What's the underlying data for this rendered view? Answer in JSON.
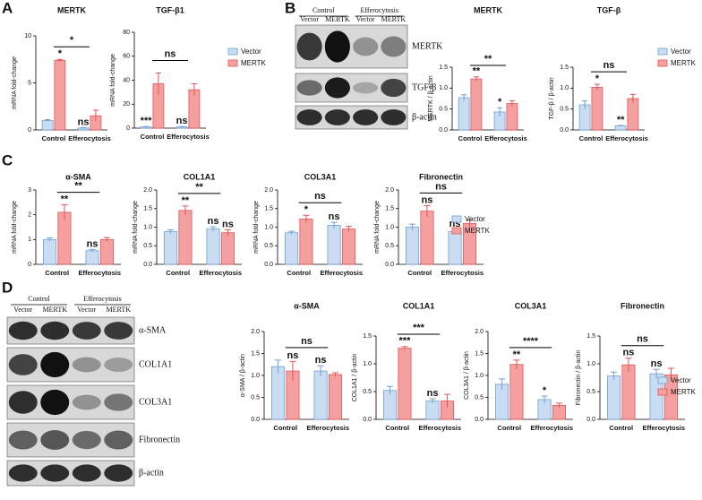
{
  "panels": [
    "A",
    "B",
    "C",
    "D"
  ],
  "blots": [
    {
      "groups": [
        "Control",
        "Efferocytosis"
      ],
      "lanes": [
        "Vector",
        "MERTK",
        "Vector",
        "MERTK"
      ],
      "rows": [
        "MERTK",
        "TGF-β",
        "β-actin"
      ]
    },
    {
      "groups": [
        "Control",
        "Efferocytosis"
      ],
      "lanes": [
        "Vector",
        "MERTK",
        "Vector",
        "MERTK"
      ],
      "rows": [
        "α-SMA",
        "COL1A1",
        "COL3A1",
        "Fibronectin",
        "β-actin"
      ]
    }
  ],
  "chart_data": [
    {
      "type": "bar",
      "title": "MERTK",
      "ylabel": "mRNA fold-change",
      "categories": [
        "Control",
        "Efferocytosis"
      ],
      "ylim": [
        0,
        10
      ],
      "yticks": [
        0,
        5,
        10
      ],
      "bracket": "*",
      "series": [
        {
          "name": "Vector",
          "color": "#c9dcf2",
          "edge_color": "#6fa0d8",
          "values": [
            1,
            0.2
          ],
          "errors": [
            0.1,
            0.05
          ],
          "annotations": [
            null,
            "ns"
          ]
        },
        {
          "name": "MERTK",
          "color": "#f4a0a0",
          "edge_color": "#e25555",
          "values": [
            7.4,
            1.5
          ],
          "errors": [
            0.1,
            0.6
          ],
          "annotations": [
            "*",
            null
          ]
        }
      ]
    },
    {
      "type": "bar",
      "title": "TGF-β1",
      "ylabel": "mRNA fold-change",
      "categories": [
        "Control",
        "Efferocytosis"
      ],
      "ylim": [
        0,
        80
      ],
      "yticks": [
        0,
        20,
        40,
        60,
        80
      ],
      "bracket": "ns",
      "legend": "right",
      "series": [
        {
          "name": "Vector",
          "color": "#c9dcf2",
          "edge_color": "#6fa0d8",
          "values": [
            1,
            1
          ],
          "errors": [
            0.3,
            0.3
          ],
          "annotations": [
            "***",
            "ns"
          ]
        },
        {
          "name": "MERTK",
          "color": "#f4a0a0",
          "edge_color": "#e25555",
          "values": [
            37,
            32
          ],
          "errors": [
            9,
            5
          ],
          "annotations": [
            null,
            null
          ]
        }
      ]
    },
    {
      "type": "bar",
      "title": "MERTK",
      "ylabel": "MERTK / β-actin",
      "categories": [
        "Control",
        "Efferocytosis"
      ],
      "ylim": [
        0,
        1.5
      ],
      "yticks": [
        {
          "value": 0,
          "label": "0.0"
        },
        0.5,
        {
          "value": 1,
          "label": "1.0"
        },
        1.5
      ],
      "bracket": "**",
      "series": [
        {
          "name": "Vector",
          "color": "#c9dcf2",
          "edge_color": "#6fa0d8",
          "values": [
            0.77,
            0.43
          ],
          "errors": [
            0.07,
            0.1
          ],
          "annotations": [
            null,
            "*"
          ]
        },
        {
          "name": "MERTK",
          "color": "#f4a0a0",
          "edge_color": "#e25555",
          "values": [
            1.22,
            0.63
          ],
          "errors": [
            0.05,
            0.07
          ],
          "annotations": [
            "**",
            null
          ]
        }
      ]
    },
    {
      "type": "bar",
      "title": "TGF-β",
      "ylabel": "TGF-β / β-actin",
      "categories": [
        "Control",
        "Efferocytosis"
      ],
      "ylim": [
        0,
        1.5
      ],
      "yticks": [
        {
          "value": 0,
          "label": "0.0"
        },
        0.5,
        {
          "value": 1,
          "label": "1.0"
        },
        1.5
      ],
      "bracket": "ns",
      "legend": "right",
      "series": [
        {
          "name": "Vector",
          "color": "#c9dcf2",
          "edge_color": "#6fa0d8",
          "values": [
            0.6,
            0.1
          ],
          "errors": [
            0.1,
            0.01
          ],
          "annotations": [
            null,
            "**"
          ]
        },
        {
          "name": "MERTK",
          "color": "#f4a0a0",
          "edge_color": "#e25555",
          "values": [
            1.02,
            0.75
          ],
          "errors": [
            0.07,
            0.1
          ],
          "annotations": [
            "*",
            null
          ]
        }
      ]
    },
    {
      "type": "bar",
      "title": "α-SMA",
      "ylabel": "mRNA fold-change",
      "categories": [
        "Control",
        "Efferocytosis"
      ],
      "ylim": [
        0,
        3
      ],
      "yticks": [
        0,
        1,
        2,
        3
      ],
      "bracket": "**",
      "series": [
        {
          "name": "Vector",
          "color": "#c9dcf2",
          "edge_color": "#6fa0d8",
          "values": [
            1.0,
            0.55
          ],
          "errors": [
            0.07,
            0.05
          ],
          "annotations": [
            null,
            "ns"
          ]
        },
        {
          "name": "MERTK",
          "color": "#f4a0a0",
          "edge_color": "#e25555",
          "values": [
            2.1,
            1.0
          ],
          "errors": [
            0.3,
            0.08
          ],
          "annotations": [
            "**",
            null
          ]
        }
      ]
    },
    {
      "type": "bar",
      "title": "COL1A1",
      "ylabel": "mRNA fold-change",
      "categories": [
        "Control",
        "Efferocytosis"
      ],
      "ylim": [
        0,
        2
      ],
      "yticks": [
        {
          "value": 0,
          "label": "0.0"
        },
        0.5,
        {
          "value": 1,
          "label": "1.0"
        },
        1.5,
        {
          "value": 2,
          "label": "2.0"
        }
      ],
      "bracket": "**",
      "series": [
        {
          "name": "Vector",
          "color": "#c9dcf2",
          "edge_color": "#6fa0d8",
          "values": [
            0.88,
            0.95
          ],
          "errors": [
            0.05,
            0.06
          ],
          "annotations": [
            null,
            "ns"
          ]
        },
        {
          "name": "MERTK",
          "color": "#f4a0a0",
          "edge_color": "#e25555",
          "values": [
            1.45,
            0.85
          ],
          "errors": [
            0.12,
            0.08
          ],
          "annotations": [
            "**",
            "ns"
          ]
        }
      ]
    },
    {
      "type": "bar",
      "title": "COL3A1",
      "ylabel": "mRNA fold-change",
      "categories": [
        "Control",
        "Efferocytosis"
      ],
      "ylim": [
        0,
        2
      ],
      "yticks": [
        {
          "value": 0,
          "label": "0.0"
        },
        0.5,
        {
          "value": 1,
          "label": "1.0"
        },
        1.5,
        {
          "value": 2,
          "label": "2.0"
        }
      ],
      "bracket": "ns",
      "series": [
        {
          "name": "Vector",
          "color": "#c9dcf2",
          "edge_color": "#6fa0d8",
          "values": [
            0.85,
            1.05
          ],
          "errors": [
            0.04,
            0.08
          ],
          "annotations": [
            null,
            "ns"
          ]
        },
        {
          "name": "MERTK",
          "color": "#f4a0a0",
          "edge_color": "#e25555",
          "values": [
            1.22,
            0.95
          ],
          "errors": [
            0.1,
            0.07
          ],
          "annotations": [
            "*",
            null
          ]
        }
      ]
    },
    {
      "type": "bar",
      "title": "Fibronectin",
      "ylabel": "mRNA fold-change",
      "categories": [
        "Control",
        "Efferocytosis"
      ],
      "ylim": [
        0,
        2
      ],
      "yticks": [
        {
          "value": 0,
          "label": "0.0"
        },
        0.5,
        {
          "value": 1,
          "label": "1.0"
        },
        1.5,
        {
          "value": 2,
          "label": "2.0"
        }
      ],
      "bracket": "ns",
      "legend": "right",
      "series": [
        {
          "name": "Vector",
          "color": "#c9dcf2",
          "edge_color": "#6fa0d8",
          "values": [
            1.0,
            0.88
          ],
          "errors": [
            0.08,
            0.06
          ],
          "annotations": [
            null,
            "ns"
          ]
        },
        {
          "name": "MERTK",
          "color": "#f4a0a0",
          "edge_color": "#e25555",
          "values": [
            1.43,
            1.1
          ],
          "errors": [
            0.15,
            0.1
          ],
          "annotations": [
            "ns",
            null
          ]
        }
      ]
    },
    {
      "type": "bar",
      "title": "α-SMA",
      "ylabel": "α-SMA / β-actin",
      "categories": [
        "Control",
        "Efferocytosis"
      ],
      "ylim": [
        0,
        2
      ],
      "yticks": [
        {
          "value": 0,
          "label": "0.0"
        },
        0.5,
        {
          "value": 1,
          "label": "1.0"
        },
        1.5,
        {
          "value": 2,
          "label": "2.0"
        }
      ],
      "bracket": "ns",
      "series": [
        {
          "name": "Vector",
          "color": "#c9dcf2",
          "edge_color": "#6fa0d8",
          "values": [
            1.2,
            1.1
          ],
          "errors": [
            0.15,
            0.12
          ],
          "annotations": [
            null,
            "ns"
          ]
        },
        {
          "name": "MERTK",
          "color": "#f4a0a0",
          "edge_color": "#e25555",
          "values": [
            1.1,
            1.02
          ],
          "errors": [
            0.22,
            0.04
          ],
          "annotations": [
            "ns",
            null
          ]
        }
      ]
    },
    {
      "type": "bar",
      "title": "COL1A1",
      "ylabel": "COL1A1 / β-actin",
      "categories": [
        "Control",
        "Efferocytosis"
      ],
      "ylim": [
        0,
        1.5
      ],
      "yticks": [
        {
          "value": 0,
          "label": "0.0"
        },
        0.5,
        {
          "value": 1,
          "label": "1.0"
        },
        1.5
      ],
      "bracket": "***",
      "series": [
        {
          "name": "Vector",
          "color": "#c9dcf2",
          "edge_color": "#6fa0d8",
          "values": [
            0.52,
            0.33
          ],
          "errors": [
            0.07,
            0.04
          ],
          "annotations": [
            null,
            "ns"
          ]
        },
        {
          "name": "MERTK",
          "color": "#f4a0a0",
          "edge_color": "#e25555",
          "values": [
            1.28,
            0.33
          ],
          "errors": [
            0.03,
            0.12
          ],
          "annotations": [
            "***",
            null
          ]
        }
      ]
    },
    {
      "type": "bar",
      "title": "COL3A1",
      "ylabel": "COL3A1 / β-actin",
      "categories": [
        "Control",
        "Efferocytosis"
      ],
      "ylim": [
        0,
        2
      ],
      "yticks": [
        {
          "value": 0,
          "label": "0.0"
        },
        0.5,
        {
          "value": 1,
          "label": "1.0"
        },
        1.5,
        {
          "value": 2,
          "label": "2.0"
        }
      ],
      "bracket": "****",
      "series": [
        {
          "name": "Vector",
          "color": "#c9dcf2",
          "edge_color": "#6fa0d8",
          "values": [
            0.8,
            0.45
          ],
          "errors": [
            0.12,
            0.08
          ],
          "annotations": [
            null,
            "*"
          ]
        },
        {
          "name": "MERTK",
          "color": "#f4a0a0",
          "edge_color": "#e25555",
          "values": [
            1.25,
            0.32
          ],
          "errors": [
            0.1,
            0.05
          ],
          "annotations": [
            "**",
            null
          ]
        }
      ]
    },
    {
      "type": "bar",
      "title": "Fibronectin",
      "ylabel": "Fibronectin / β-actin",
      "categories": [
        "Control",
        "Efferocytosis"
      ],
      "ylim": [
        0,
        1.5
      ],
      "yticks": [
        {
          "value": 0,
          "label": "0.0"
        },
        0.5,
        {
          "value": 1,
          "label": "1.0"
        },
        1.5
      ],
      "bracket": "ns",
      "legend": "right",
      "series": [
        {
          "name": "Vector",
          "color": "#c9dcf2",
          "edge_color": "#6fa0d8",
          "values": [
            0.78,
            0.82
          ],
          "errors": [
            0.07,
            0.08
          ],
          "annotations": [
            null,
            "ns"
          ]
        },
        {
          "name": "MERTK",
          "color": "#f4a0a0",
          "edge_color": "#e25555",
          "values": [
            0.98,
            0.8
          ],
          "errors": [
            0.12,
            0.12
          ],
          "annotations": [
            "ns",
            null
          ]
        }
      ]
    }
  ]
}
